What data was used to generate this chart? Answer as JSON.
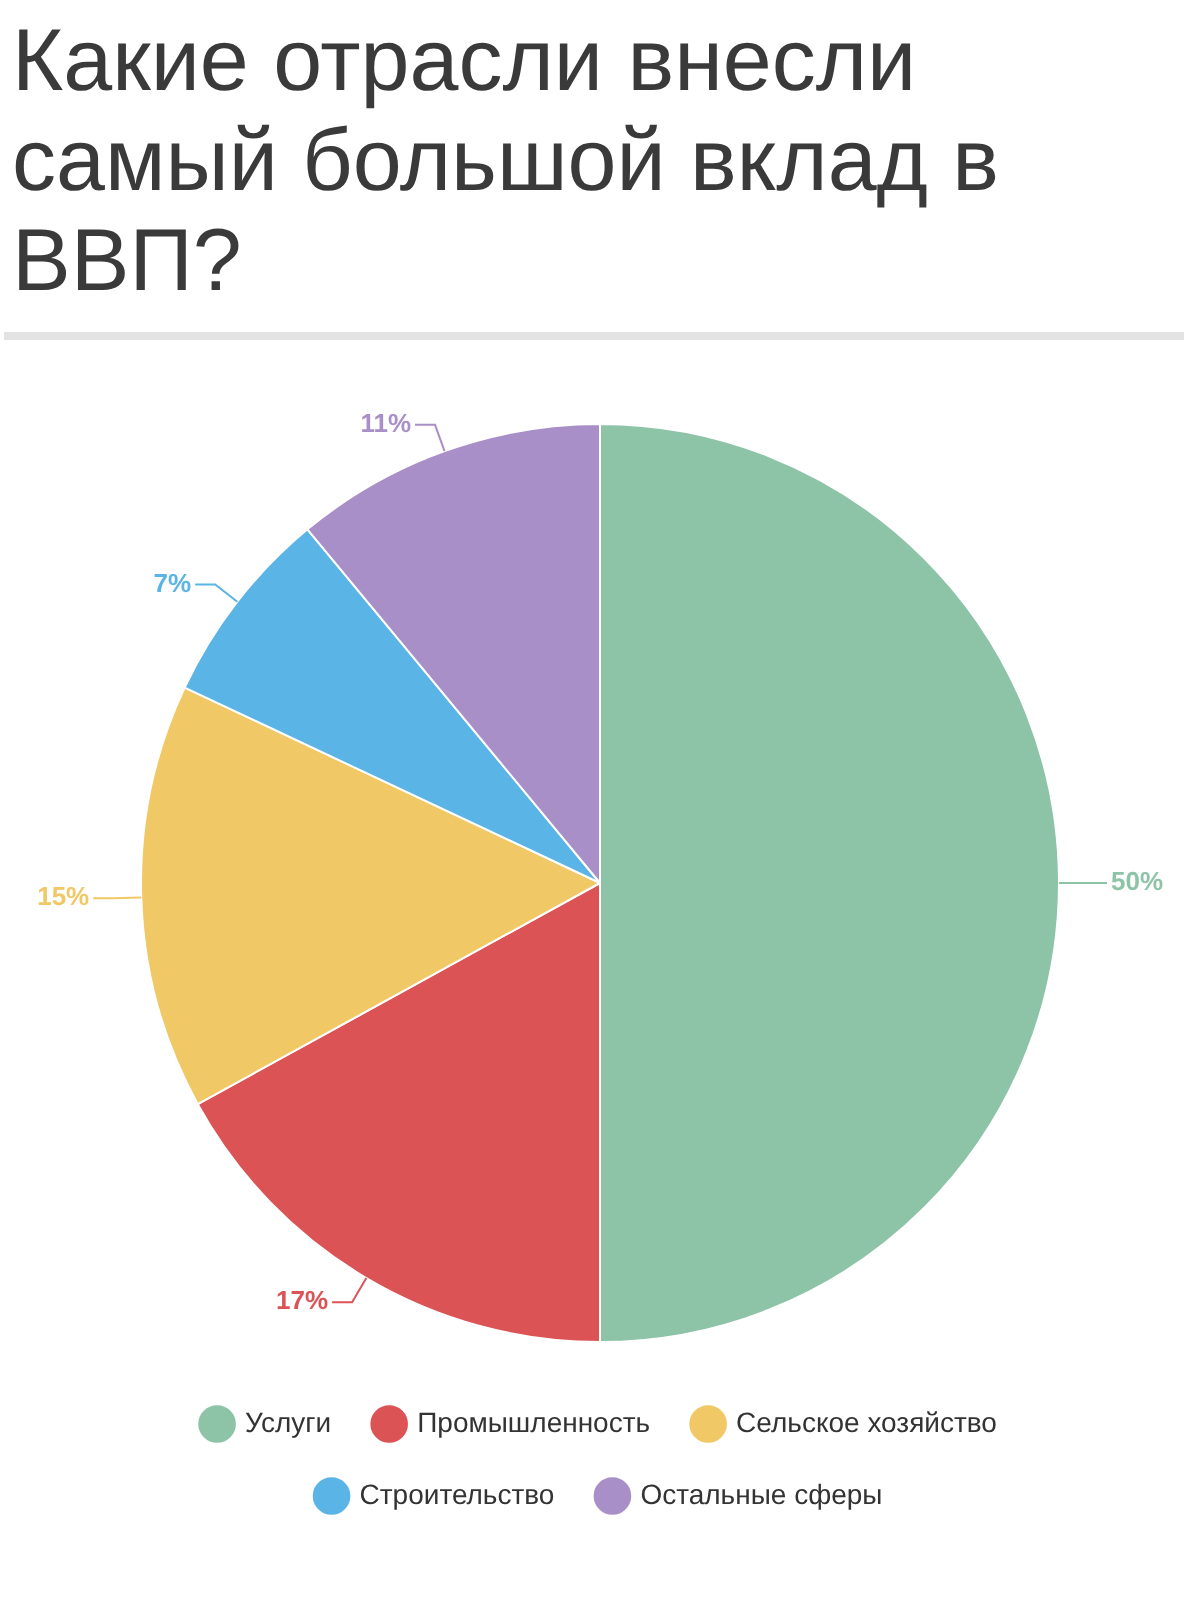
{
  "chart_data": {
    "type": "pie",
    "title": "Какие отрасли внесли самый большой вклад в ВВП?",
    "categories": [
      "Услуги",
      "Промышленность",
      "Сельское хозяйство",
      "Строительство",
      "Остальные сферы"
    ],
    "values": [
      50,
      17,
      15,
      7,
      11
    ],
    "colors": [
      "#8dc3a7",
      "#dc5356",
      "#f0c865",
      "#5ab4e5",
      "#a98fc7"
    ],
    "value_labels": [
      "50%",
      "17%",
      "15%",
      "7%",
      "11%"
    ],
    "legend": "bottom"
  }
}
